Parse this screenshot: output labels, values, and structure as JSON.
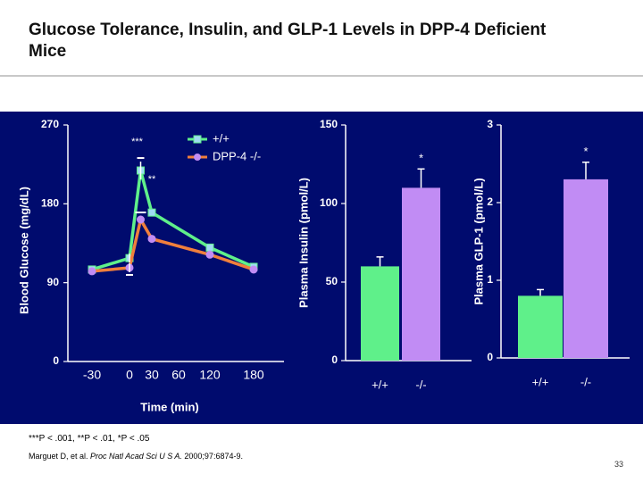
{
  "title": "Glucose Tolerance, Insulin, and GLP-1 Levels in DPP-4 Deficient\nMice",
  "footnote": "***P < .001, **P < .01, *P < .05",
  "citation_prefix": "Marguet D, et al. ",
  "citation_journal": "Proc Natl Acad Sci U S A.",
  "citation_suffix": " 2000;97:6874-9.",
  "page_number": "33",
  "colors": {
    "background": "#000b6e",
    "wildtype": "#5ff08a",
    "knockout": "#c18cf4",
    "ko_line": "#f07f3c",
    "axis": "#ffffff"
  },
  "chart_data": [
    {
      "type": "line",
      "ylabel": "Blood Glucose (mg/dL)",
      "xlabel": "Time (min)",
      "ylim": [
        0,
        270
      ],
      "yticks": [
        0,
        90,
        180,
        270
      ],
      "xticks": [
        "-30",
        "0",
        "30",
        "60",
        "120",
        "180"
      ],
      "x": [
        -30,
        0,
        15,
        30,
        60,
        120,
        180
      ],
      "series": [
        {
          "name": "+/+",
          "values": [
            105,
            118,
            218,
            170,
            130,
            108
          ],
          "x": [
            -30,
            0,
            15,
            30,
            120,
            180
          ]
        },
        {
          "name": "DPP-4 -/-",
          "values": [
            103,
            107,
            162,
            140,
            122,
            105
          ],
          "x": [
            -30,
            0,
            15,
            30,
            120,
            180
          ]
        }
      ],
      "significance": [
        {
          "label": "***",
          "at": 15
        },
        {
          "label": "**",
          "at": 30
        }
      ]
    },
    {
      "type": "bar",
      "ylabel": "Plasma Insulin (pmol/L)",
      "ylim": [
        0,
        150
      ],
      "yticks": [
        0,
        50,
        100,
        150
      ],
      "categories": [
        "+/+",
        "-/-"
      ],
      "values": [
        60,
        110
      ],
      "errors": [
        6,
        12
      ],
      "significance": [
        {
          "label": "*",
          "category": "-/-"
        }
      ]
    },
    {
      "type": "bar",
      "ylabel": "Plasma GLP-1 (pmol/L)",
      "ylim": [
        0,
        3
      ],
      "yticks": [
        0,
        1,
        2,
        3
      ],
      "categories": [
        "+/+",
        "-/-"
      ],
      "values": [
        0.8,
        2.3
      ],
      "errors": [
        0.08,
        0.22
      ],
      "significance": [
        {
          "label": "*",
          "category": "-/-"
        }
      ]
    }
  ]
}
